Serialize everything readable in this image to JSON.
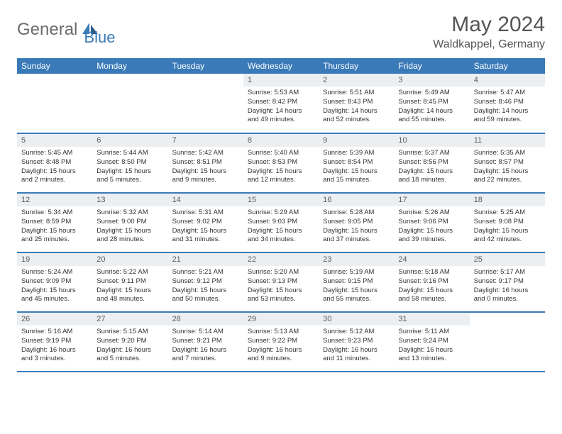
{
  "logo": {
    "part1": "General",
    "part2": "Blue"
  },
  "title": "May 2024",
  "location": "Waldkappel, Germany",
  "colors": {
    "header_bg": "#3a7ab8",
    "header_text": "#ffffff",
    "daynum_bg": "#eceff1",
    "logo_gray": "#6b6b6b",
    "logo_blue": "#3a7ab8",
    "text": "#333333",
    "title_color": "#555555"
  },
  "weekdays": [
    "Sunday",
    "Monday",
    "Tuesday",
    "Wednesday",
    "Thursday",
    "Friday",
    "Saturday"
  ],
  "weeks": [
    [
      null,
      null,
      null,
      {
        "d": "1",
        "sr": "5:53 AM",
        "ss": "8:42 PM",
        "dl": "14 hours and 49 minutes."
      },
      {
        "d": "2",
        "sr": "5:51 AM",
        "ss": "8:43 PM",
        "dl": "14 hours and 52 minutes."
      },
      {
        "d": "3",
        "sr": "5:49 AM",
        "ss": "8:45 PM",
        "dl": "14 hours and 55 minutes."
      },
      {
        "d": "4",
        "sr": "5:47 AM",
        "ss": "8:46 PM",
        "dl": "14 hours and 59 minutes."
      }
    ],
    [
      {
        "d": "5",
        "sr": "5:45 AM",
        "ss": "8:48 PM",
        "dl": "15 hours and 2 minutes."
      },
      {
        "d": "6",
        "sr": "5:44 AM",
        "ss": "8:50 PM",
        "dl": "15 hours and 5 minutes."
      },
      {
        "d": "7",
        "sr": "5:42 AM",
        "ss": "8:51 PM",
        "dl": "15 hours and 9 minutes."
      },
      {
        "d": "8",
        "sr": "5:40 AM",
        "ss": "8:53 PM",
        "dl": "15 hours and 12 minutes."
      },
      {
        "d": "9",
        "sr": "5:39 AM",
        "ss": "8:54 PM",
        "dl": "15 hours and 15 minutes."
      },
      {
        "d": "10",
        "sr": "5:37 AM",
        "ss": "8:56 PM",
        "dl": "15 hours and 18 minutes."
      },
      {
        "d": "11",
        "sr": "5:35 AM",
        "ss": "8:57 PM",
        "dl": "15 hours and 22 minutes."
      }
    ],
    [
      {
        "d": "12",
        "sr": "5:34 AM",
        "ss": "8:59 PM",
        "dl": "15 hours and 25 minutes."
      },
      {
        "d": "13",
        "sr": "5:32 AM",
        "ss": "9:00 PM",
        "dl": "15 hours and 28 minutes."
      },
      {
        "d": "14",
        "sr": "5:31 AM",
        "ss": "9:02 PM",
        "dl": "15 hours and 31 minutes."
      },
      {
        "d": "15",
        "sr": "5:29 AM",
        "ss": "9:03 PM",
        "dl": "15 hours and 34 minutes."
      },
      {
        "d": "16",
        "sr": "5:28 AM",
        "ss": "9:05 PM",
        "dl": "15 hours and 37 minutes."
      },
      {
        "d": "17",
        "sr": "5:26 AM",
        "ss": "9:06 PM",
        "dl": "15 hours and 39 minutes."
      },
      {
        "d": "18",
        "sr": "5:25 AM",
        "ss": "9:08 PM",
        "dl": "15 hours and 42 minutes."
      }
    ],
    [
      {
        "d": "19",
        "sr": "5:24 AM",
        "ss": "9:09 PM",
        "dl": "15 hours and 45 minutes."
      },
      {
        "d": "20",
        "sr": "5:22 AM",
        "ss": "9:11 PM",
        "dl": "15 hours and 48 minutes."
      },
      {
        "d": "21",
        "sr": "5:21 AM",
        "ss": "9:12 PM",
        "dl": "15 hours and 50 minutes."
      },
      {
        "d": "22",
        "sr": "5:20 AM",
        "ss": "9:13 PM",
        "dl": "15 hours and 53 minutes."
      },
      {
        "d": "23",
        "sr": "5:19 AM",
        "ss": "9:15 PM",
        "dl": "15 hours and 55 minutes."
      },
      {
        "d": "24",
        "sr": "5:18 AM",
        "ss": "9:16 PM",
        "dl": "15 hours and 58 minutes."
      },
      {
        "d": "25",
        "sr": "5:17 AM",
        "ss": "9:17 PM",
        "dl": "16 hours and 0 minutes."
      }
    ],
    [
      {
        "d": "26",
        "sr": "5:16 AM",
        "ss": "9:19 PM",
        "dl": "16 hours and 3 minutes."
      },
      {
        "d": "27",
        "sr": "5:15 AM",
        "ss": "9:20 PM",
        "dl": "16 hours and 5 minutes."
      },
      {
        "d": "28",
        "sr": "5:14 AM",
        "ss": "9:21 PM",
        "dl": "16 hours and 7 minutes."
      },
      {
        "d": "29",
        "sr": "5:13 AM",
        "ss": "9:22 PM",
        "dl": "16 hours and 9 minutes."
      },
      {
        "d": "30",
        "sr": "5:12 AM",
        "ss": "9:23 PM",
        "dl": "16 hours and 11 minutes."
      },
      {
        "d": "31",
        "sr": "5:11 AM",
        "ss": "9:24 PM",
        "dl": "16 hours and 13 minutes."
      },
      null
    ]
  ],
  "labels": {
    "sunrise": "Sunrise:",
    "sunset": "Sunset:",
    "daylight": "Daylight:"
  }
}
